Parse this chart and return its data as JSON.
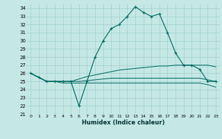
{
  "xlabel": "Humidex (Indice chaleur)",
  "background_color": "#c5e8e5",
  "grid_color": "#9dcfcb",
  "line_color": "#006860",
  "xlim": [
    -0.5,
    23.5
  ],
  "ylim": [
    21,
    34.5
  ],
  "xticks": [
    0,
    1,
    2,
    3,
    4,
    5,
    6,
    7,
    8,
    9,
    10,
    11,
    12,
    13,
    14,
    15,
    16,
    17,
    18,
    19,
    20,
    21,
    22,
    23
  ],
  "yticks": [
    21,
    22,
    23,
    24,
    25,
    26,
    27,
    28,
    29,
    30,
    31,
    32,
    33,
    34
  ],
  "line1_y": [
    26,
    25.5,
    25,
    25,
    25,
    25,
    22,
    25,
    28,
    30,
    31.5,
    32,
    33,
    34.2,
    33.5,
    33,
    33.3,
    31,
    28.5,
    27,
    27,
    26.5,
    25,
    25
  ],
  "line2_y": [
    26,
    25.5,
    25,
    25,
    25,
    25,
    25.3,
    25.6,
    25.8,
    26.0,
    26.2,
    26.4,
    26.5,
    26.6,
    26.7,
    26.8,
    26.9,
    26.9,
    27.0,
    27.0,
    27.0,
    27.0,
    27.0,
    26.8
  ],
  "line3_y": [
    26,
    25.5,
    25,
    25,
    25,
    25,
    25.0,
    25.1,
    25.2,
    25.3,
    25.4,
    25.4,
    25.4,
    25.4,
    25.4,
    25.4,
    25.4,
    25.4,
    25.4,
    25.4,
    25.4,
    25.4,
    25.2,
    25.0
  ],
  "line4_y": [
    26,
    25.5,
    25,
    25,
    24.8,
    24.8,
    24.8,
    24.8,
    24.8,
    24.8,
    24.8,
    24.8,
    24.8,
    24.8,
    24.8,
    24.8,
    24.8,
    24.8,
    24.8,
    24.8,
    24.8,
    24.8,
    24.6,
    24.3
  ]
}
